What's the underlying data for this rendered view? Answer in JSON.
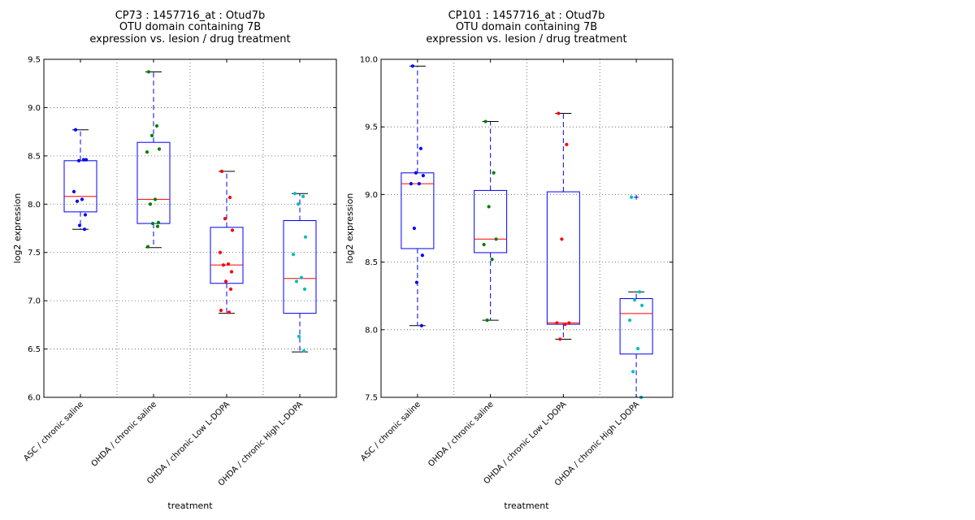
{
  "chart_data": [
    {
      "type": "box",
      "title_lines": [
        "CP73 : 1457716_at : Otud7b",
        "OTU domain containing 7B",
        "expression vs. lesion / drug treatment"
      ],
      "xlabel": "treatment",
      "ylabel": "log2 expression",
      "ylim": [
        6.0,
        9.5
      ],
      "yticks": [
        "6.0",
        "6.5",
        "7.0",
        "7.5",
        "8.0",
        "8.5",
        "9.0",
        "9.5"
      ],
      "grid": true,
      "categories": [
        "ASC / chronic saline",
        "OHDA / chronic saline",
        "OHDA / chronic Low L-DOPA",
        "OHDA / chronic High L-DOPA"
      ],
      "boxes": [
        {
          "whisker_low": 7.74,
          "q1": 7.92,
          "median": 8.08,
          "q3": 8.45,
          "whisker_high": 8.77,
          "outliers": []
        },
        {
          "whisker_low": 7.55,
          "q1": 7.8,
          "median": 8.05,
          "q3": 8.64,
          "whisker_high": 9.37,
          "outliers": []
        },
        {
          "whisker_low": 6.87,
          "q1": 7.18,
          "median": 7.37,
          "q3": 7.76,
          "whisker_high": 8.34,
          "outliers": []
        },
        {
          "whisker_low": 6.47,
          "q1": 6.87,
          "median": 7.23,
          "q3": 7.83,
          "whisker_high": 8.11,
          "outliers": []
        }
      ],
      "points": [
        [
          8.77,
          8.46,
          8.45,
          8.46,
          8.13,
          8.05,
          8.03,
          7.89,
          7.78,
          7.74
        ],
        [
          9.37,
          8.81,
          8.71,
          8.57,
          8.54,
          8.05,
          8.0,
          7.81,
          7.8,
          7.77,
          7.56
        ],
        [
          8.34,
          8.07,
          7.85,
          7.73,
          7.5,
          7.38,
          7.37,
          7.3,
          7.2,
          7.12,
          6.9,
          6.88
        ],
        [
          8.11,
          8.08,
          8.0,
          7.66,
          7.48,
          7.24,
          7.2,
          7.12,
          6.63,
          6.48
        ]
      ],
      "colors": [
        "#0000ff",
        "#008000",
        "#ff0000",
        "#00bfbf"
      ]
    },
    {
      "type": "box",
      "title_lines": [
        "CP101 : 1457716_at : Otud7b",
        "OTU domain containing 7B",
        "expression vs. lesion / drug treatment"
      ],
      "xlabel": "treatment",
      "ylabel": "log2 expression",
      "ylim": [
        7.5,
        10.0
      ],
      "yticks": [
        "7.5",
        "8.0",
        "8.5",
        "9.0",
        "9.5",
        "10.0"
      ],
      "grid": true,
      "categories": [
        "ASC / chronic saline",
        "OHDA / chronic saline",
        "OHDA / chronic Low L-DOPA",
        "OHDA / chronic High L-DOPA"
      ],
      "boxes": [
        {
          "whisker_low": 8.03,
          "q1": 8.6,
          "median": 9.08,
          "q3": 9.16,
          "whisker_high": 9.95,
          "outliers": []
        },
        {
          "whisker_low": 8.07,
          "q1": 8.57,
          "median": 8.67,
          "q3": 9.03,
          "whisker_high": 9.54,
          "outliers": []
        },
        {
          "whisker_low": 7.93,
          "q1": 8.04,
          "median": 8.05,
          "q3": 9.02,
          "whisker_high": 9.6,
          "outliers": []
        },
        {
          "whisker_low": 7.5,
          "q1": 7.82,
          "median": 8.12,
          "q3": 8.23,
          "whisker_high": 8.28,
          "outliers": [
            8.98
          ]
        }
      ],
      "points": [
        [
          9.95,
          9.34,
          9.16,
          9.14,
          9.08,
          9.08,
          8.75,
          8.55,
          8.35,
          8.03
        ],
        [
          9.54,
          9.16,
          8.91,
          8.67,
          8.63,
          8.52,
          8.07
        ],
        [
          9.6,
          9.37,
          8.67,
          8.05,
          8.05,
          8.04,
          7.93
        ],
        [
          8.98,
          8.28,
          8.22,
          8.18,
          8.07,
          7.86,
          7.69,
          7.5
        ]
      ],
      "colors": [
        "#0000ff",
        "#008000",
        "#ff0000",
        "#00bfbf"
      ]
    }
  ]
}
